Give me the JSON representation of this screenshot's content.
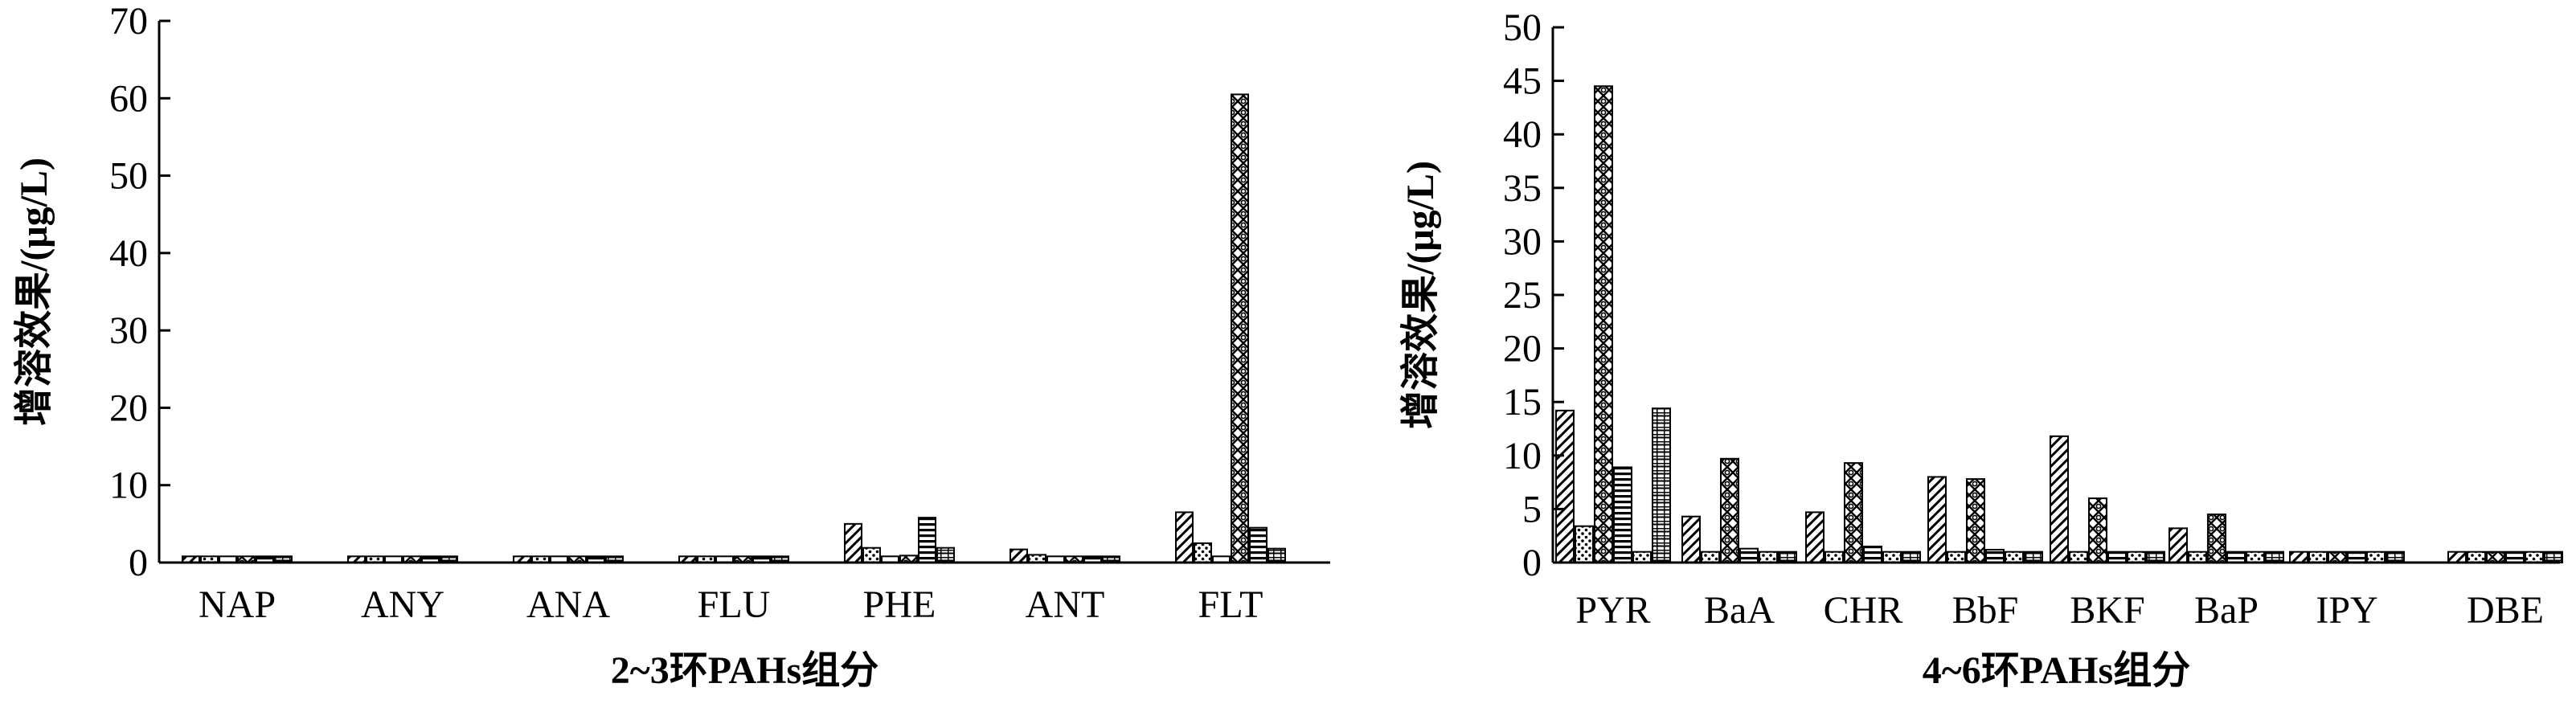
{
  "colors": {
    "ink": "#000000",
    "background": "#ffffff"
  },
  "chart_data": [
    {
      "type": "bar",
      "xlabel": "2~3环PAHs组分",
      "ylabel": "增溶效果/(μg/L)",
      "ylim": [
        0,
        70
      ],
      "yticks": [
        "0",
        "10",
        "20",
        "30",
        "40",
        "50",
        "60",
        "70"
      ],
      "categories": [
        "NAP",
        "ANY",
        "ANA",
        "FLU",
        "PHE",
        "ANT",
        "FLT"
      ],
      "series": [
        {
          "pattern": "diag",
          "values": [
            0.8,
            0.8,
            0.8,
            0.8,
            5.0,
            1.7,
            6.5
          ]
        },
        {
          "pattern": "dots",
          "values": [
            0.8,
            0.8,
            0.8,
            0.8,
            1.9,
            1.0,
            2.5
          ]
        },
        {
          "pattern": "light",
          "values": [
            0.8,
            0.8,
            0.8,
            0.8,
            0.8,
            0.8,
            0.8
          ]
        },
        {
          "pattern": "cross",
          "values": [
            0.8,
            0.8,
            0.8,
            0.8,
            0.9,
            0.8,
            60.5
          ]
        },
        {
          "pattern": "hlines",
          "values": [
            0.8,
            0.8,
            0.8,
            0.8,
            5.8,
            0.8,
            4.5
          ]
        },
        {
          "pattern": "grid",
          "values": [
            0.8,
            0.8,
            0.8,
            0.8,
            1.9,
            0.8,
            1.8
          ]
        }
      ],
      "grid": false,
      "legend": "none"
    },
    {
      "type": "bar",
      "xlabel": "4~6环PAHs组分",
      "ylabel": "增溶效果/(μg/L)",
      "ylim": [
        0,
        50
      ],
      "yticks": [
        "0",
        "5",
        "10",
        "15",
        "20",
        "25",
        "30",
        "35",
        "40",
        "45",
        "50"
      ],
      "categories": [
        "PYR",
        "BaA",
        "CHR",
        "BbF",
        "BKF",
        "BaP",
        "IPY",
        "DBE"
      ],
      "series": [
        {
          "pattern": "diag",
          "values": [
            14.2,
            4.3,
            4.7,
            8.0,
            11.8,
            3.2,
            1.0,
            1.0
          ]
        },
        {
          "pattern": "dots",
          "values": [
            3.4,
            1.0,
            1.0,
            1.0,
            1.0,
            1.0,
            1.0,
            1.0
          ]
        },
        {
          "pattern": "cross",
          "values": [
            44.5,
            9.7,
            9.3,
            7.8,
            6.0,
            4.5,
            1.0,
            1.0
          ]
        },
        {
          "pattern": "hlines",
          "values": [
            8.9,
            1.3,
            1.5,
            1.2,
            1.0,
            1.0,
            1.0,
            1.0
          ]
        },
        {
          "pattern": "dots",
          "values": [
            1.0,
            1.0,
            1.0,
            1.0,
            1.0,
            1.0,
            1.0,
            1.0
          ]
        },
        {
          "pattern": "grid",
          "values": [
            14.4,
            1.0,
            1.0,
            1.0,
            1.0,
            1.0,
            1.0,
            1.0
          ]
        }
      ],
      "grid": false,
      "legend": "none"
    }
  ]
}
